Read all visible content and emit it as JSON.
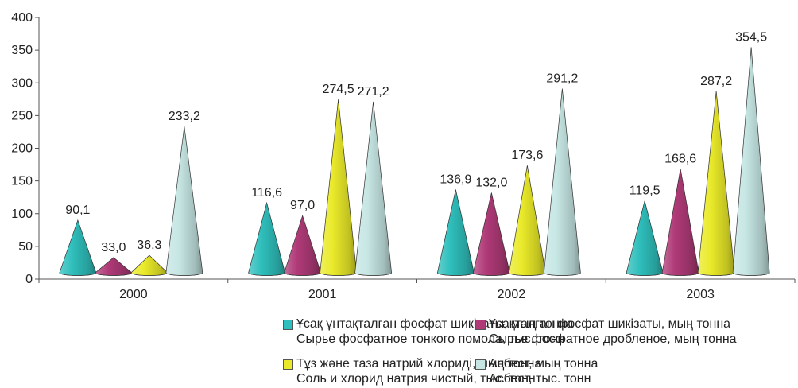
{
  "chart_data": {
    "type": "bar",
    "shape": "cone",
    "categories": [
      "2000",
      "2001",
      "2002",
      "2003"
    ],
    "ylim": [
      0,
      400
    ],
    "yticks": [
      "0",
      "50",
      "100",
      "150",
      "200",
      "250",
      "300",
      "350",
      "400"
    ],
    "series": [
      {
        "name": "Ұсақ ұнтақталған фосфат шикізаты, мың тонна",
        "name2": "Сырье фосфатное тонкого помола, тыс. тонн",
        "color": "#2fbfbc",
        "values": [
          90.1,
          116.6,
          136.9,
          119.5
        ],
        "labels": [
          "90,1",
          "116,6",
          "136,9",
          "119,5"
        ]
      },
      {
        "name": "Ұсақталған фосфат шикізаты, мың тонна",
        "name2": "Сырье фосфатное дробленое, мың тонна",
        "color": "#b03a78",
        "values": [
          33.0,
          97.0,
          132.0,
          168.6
        ],
        "labels": [
          "33,0",
          "97,0",
          "132,0",
          "168,6"
        ]
      },
      {
        "name": "Тұз және таза натрий хлориді, мың тонна",
        "name2": "Соль и хлорид натрия чистый, тыс. тонн",
        "color": "#eaea2a",
        "values": [
          36.3,
          274.5,
          173.6,
          287.2
        ],
        "labels": [
          "36,3",
          "274,5",
          "173,6",
          "287,2"
        ]
      },
      {
        "name": "Асбест, мың тонна",
        "name2": "Асбест, тыс. тонн",
        "color": "#c6e6e4",
        "values": [
          233.2,
          271.2,
          291.2,
          354.5
        ],
        "labels": [
          "233,2",
          "271,2",
          "291,2",
          "354,5"
        ]
      }
    ],
    "legend_position": "bottom",
    "grid": false
  }
}
